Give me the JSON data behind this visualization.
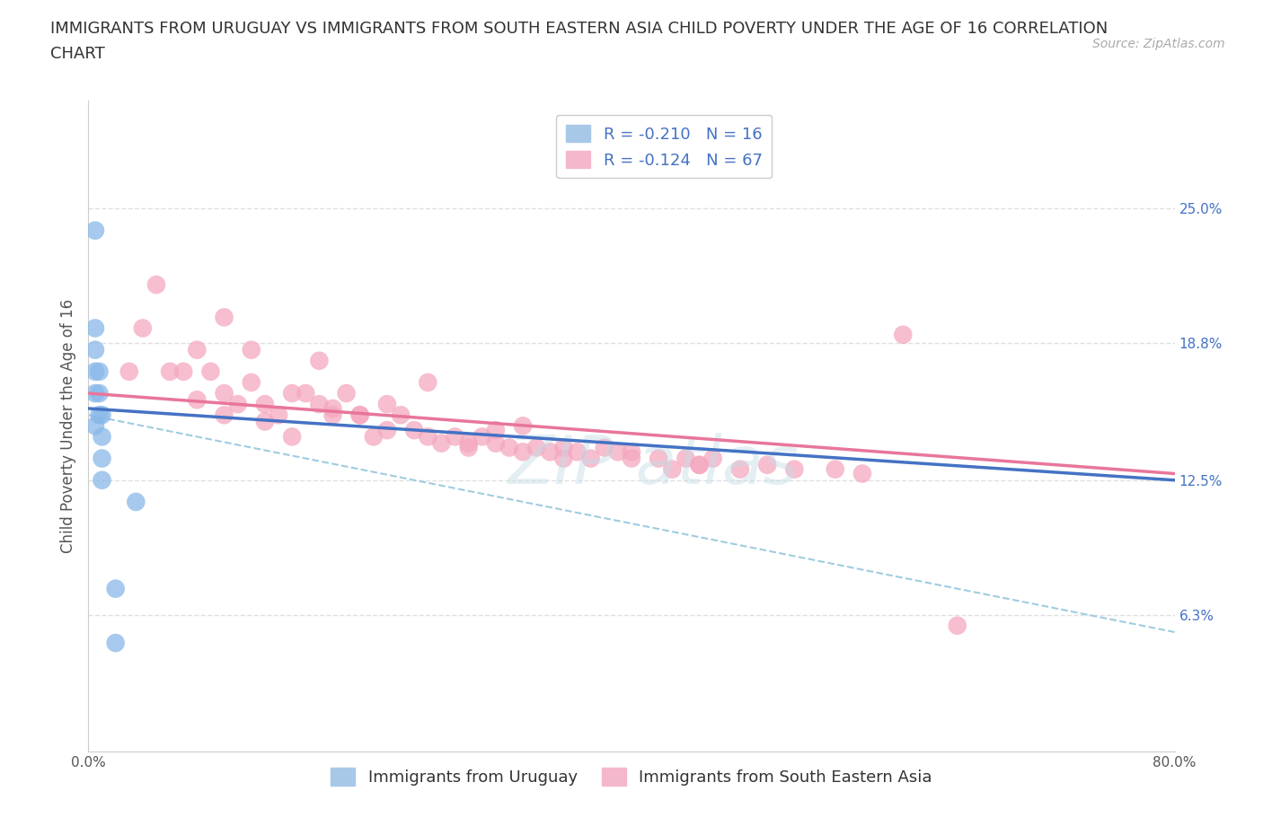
{
  "title_line1": "IMMIGRANTS FROM URUGUAY VS IMMIGRANTS FROM SOUTH EASTERN ASIA CHILD POVERTY UNDER THE AGE OF 16 CORRELATION",
  "title_line2": "CHART",
  "source_text": "Source: ZipAtlas.com",
  "ylabel": "Child Poverty Under the Age of 16",
  "xlim": [
    0.0,
    0.8
  ],
  "ylim": [
    0.0,
    0.3
  ],
  "xticks": [
    0.0,
    0.1,
    0.2,
    0.3,
    0.4,
    0.5,
    0.6,
    0.7,
    0.8
  ],
  "yticks_right": [
    0.063,
    0.125,
    0.188,
    0.25
  ],
  "ytick_labels_right": [
    "6.3%",
    "12.5%",
    "18.8%",
    "25.0%"
  ],
  "grid_color": "#e0e0e0",
  "background_color": "#ffffff",
  "uruguay_color": "#89b8e8",
  "sea_color": "#f4a8be",
  "uruguay_scatter": {
    "x": [
      0.005,
      0.005,
      0.005,
      0.005,
      0.005,
      0.005,
      0.008,
      0.008,
      0.008,
      0.01,
      0.01,
      0.01,
      0.01,
      0.02,
      0.02,
      0.035
    ],
    "y": [
      0.24,
      0.195,
      0.185,
      0.175,
      0.165,
      0.15,
      0.175,
      0.165,
      0.155,
      0.155,
      0.145,
      0.135,
      0.125,
      0.075,
      0.05,
      0.115
    ]
  },
  "sea_scatter": {
    "x": [
      0.03,
      0.04,
      0.05,
      0.06,
      0.07,
      0.08,
      0.09,
      0.1,
      0.1,
      0.11,
      0.12,
      0.12,
      0.13,
      0.14,
      0.15,
      0.16,
      0.17,
      0.17,
      0.18,
      0.19,
      0.2,
      0.21,
      0.22,
      0.23,
      0.24,
      0.25,
      0.26,
      0.27,
      0.28,
      0.29,
      0.3,
      0.31,
      0.32,
      0.33,
      0.34,
      0.35,
      0.36,
      0.37,
      0.38,
      0.39,
      0.4,
      0.42,
      0.43,
      0.44,
      0.45,
      0.46,
      0.48,
      0.5,
      0.52,
      0.55,
      0.57,
      0.25,
      0.2,
      0.22,
      0.3,
      0.35,
      0.4,
      0.45,
      0.32,
      0.28,
      0.18,
      0.15,
      0.13,
      0.1,
      0.08,
      0.6,
      0.64
    ],
    "y": [
      0.175,
      0.195,
      0.215,
      0.175,
      0.175,
      0.185,
      0.175,
      0.165,
      0.2,
      0.16,
      0.17,
      0.185,
      0.16,
      0.155,
      0.165,
      0.165,
      0.18,
      0.16,
      0.155,
      0.165,
      0.155,
      0.145,
      0.148,
      0.155,
      0.148,
      0.145,
      0.142,
      0.145,
      0.14,
      0.145,
      0.142,
      0.14,
      0.138,
      0.14,
      0.138,
      0.135,
      0.138,
      0.135,
      0.14,
      0.138,
      0.135,
      0.135,
      0.13,
      0.135,
      0.132,
      0.135,
      0.13,
      0.132,
      0.13,
      0.13,
      0.128,
      0.17,
      0.155,
      0.16,
      0.148,
      0.14,
      0.138,
      0.132,
      0.15,
      0.142,
      0.158,
      0.145,
      0.152,
      0.155,
      0.162,
      0.192,
      0.058
    ]
  },
  "uruguay_trendline": {
    "x_start": 0.0,
    "x_end": 0.8,
    "y_start": 0.158,
    "y_end": 0.125
  },
  "sea_trendline": {
    "x_start": 0.0,
    "x_end": 0.8,
    "y_start": 0.165,
    "y_end": 0.128
  },
  "blue_dashed_trendline": {
    "x_start": 0.0,
    "x_end": 0.8,
    "y_start": 0.155,
    "y_end": 0.055
  },
  "title_fontsize": 13,
  "source_fontsize": 10,
  "axis_label_fontsize": 12,
  "tick_fontsize": 11,
  "legend_fontsize": 13
}
